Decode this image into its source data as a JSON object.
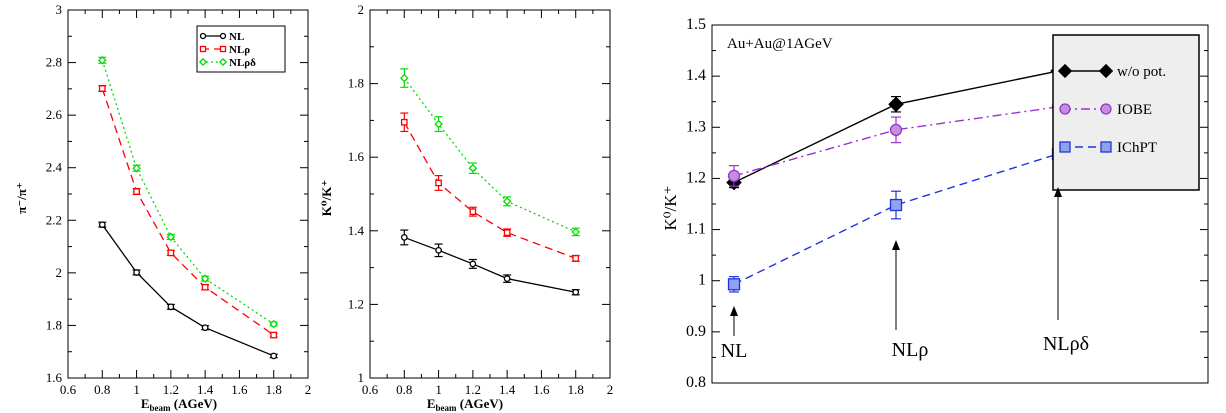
{
  "chart_data": [
    {
      "type": "line",
      "xlabel_main": "E",
      "xlabel_sub": "beam",
      "xlabel_unit": " (AGeV)",
      "ylabel": "π⁻/π⁺",
      "xlim": [
        0.6,
        2
      ],
      "ylim": [
        1.5,
        3
      ],
      "xticks": [
        "0.6",
        "0.8",
        "1",
        "1.2",
        "1.4",
        "1.6",
        "1.8",
        "2"
      ],
      "yticks": [
        "1.6",
        "1.8",
        "2",
        "2.2",
        "2.4",
        "2.6",
        "2.8",
        "3"
      ],
      "legend_position": "top-right",
      "x": [
        0.8,
        1.0,
        1.2,
        1.4,
        1.8
      ],
      "series": [
        {
          "name": "NL",
          "color": "#000000",
          "marker": "circle",
          "dash": "solid",
          "values": [
            2.125,
            1.93,
            1.79,
            1.705,
            1.59
          ],
          "errors": [
            0.01,
            0.01,
            0.01,
            0.008,
            0.007
          ]
        },
        {
          "name": "NLρ",
          "color": "#ff0000",
          "marker": "square",
          "dash": "dashed",
          "values": [
            2.68,
            2.26,
            2.01,
            1.87,
            1.675
          ],
          "errors": [
            0.012,
            0.012,
            0.01,
            0.01,
            0.008
          ]
        },
        {
          "name": "NLρδ",
          "color": "#00dd00",
          "marker": "diamond",
          "dash": "dotted",
          "values": [
            2.795,
            2.355,
            2.075,
            1.905,
            1.72
          ],
          "errors": [
            0.012,
            0.012,
            0.01,
            0.01,
            0.008
          ]
        }
      ]
    },
    {
      "type": "line",
      "xlabel_main": "E",
      "xlabel_sub": "beam",
      "xlabel_unit": " (AGeV)",
      "ylabel": "K⁰/K⁺",
      "xlim": [
        0.6,
        2
      ],
      "ylim": [
        1,
        2
      ],
      "xticks": [
        "0.6",
        "0.8",
        "1",
        "1.2",
        "1.4",
        "1.6",
        "1.8",
        "2"
      ],
      "yticks": [
        "1",
        "1.2",
        "1.4",
        "1.6",
        "1.8",
        "2"
      ],
      "x": [
        0.8,
        1.0,
        1.2,
        1.4,
        1.8
      ],
      "series": [
        {
          "name": "NL",
          "color": "#000000",
          "marker": "circle",
          "dash": "solid",
          "values": [
            1.382,
            1.347,
            1.31,
            1.27,
            1.233
          ],
          "errors": [
            0.02,
            0.017,
            0.012,
            0.01,
            0.007
          ]
        },
        {
          "name": "NLρ",
          "color": "#ff0000",
          "marker": "square",
          "dash": "dashed",
          "values": [
            1.695,
            1.53,
            1.452,
            1.395,
            1.325
          ],
          "errors": [
            0.025,
            0.02,
            0.012,
            0.01,
            0.008
          ]
        },
        {
          "name": "NLρδ",
          "color": "#00dd00",
          "marker": "diamond",
          "dash": "dotted",
          "values": [
            1.815,
            1.69,
            1.57,
            1.48,
            1.397
          ],
          "errors": [
            0.025,
            0.02,
            0.014,
            0.012,
            0.01
          ]
        }
      ]
    },
    {
      "type": "line",
      "ylabel": "K⁰/K⁺",
      "ylim": [
        0.8,
        1.5
      ],
      "yticks": [
        "0.8",
        "0.9",
        "1",
        "1.1",
        "1.2",
        "1.3",
        "1.4",
        "1.5"
      ],
      "annotation": "Au+Au@1AGeV",
      "annotation_color": "#9933cc",
      "legend_position": "top-right",
      "legend_background": "#eeeeee",
      "categories": [
        "NL",
        "NLρ",
        "NLρδ"
      ],
      "series": [
        {
          "name": "w/o pot.",
          "color": "#000000",
          "marker": "diamond",
          "dash": "solid",
          "values": [
            1.192,
            1.345,
            1.41
          ],
          "errors": [
            0.01,
            0.015,
            0.015
          ]
        },
        {
          "name": "IOBE",
          "color": "#9933cc",
          "marker": "circle",
          "dash": "dashdot",
          "values": [
            1.205,
            1.295,
            1.34
          ],
          "errors": [
            0.02,
            0.025,
            0.025
          ]
        },
        {
          "name": "IChPT",
          "color": "#2233dd",
          "marker": "square",
          "dash": "dashed",
          "values": [
            0.993,
            1.148,
            1.248
          ],
          "errors": [
            0.015,
            0.027,
            0.03
          ]
        }
      ]
    }
  ]
}
